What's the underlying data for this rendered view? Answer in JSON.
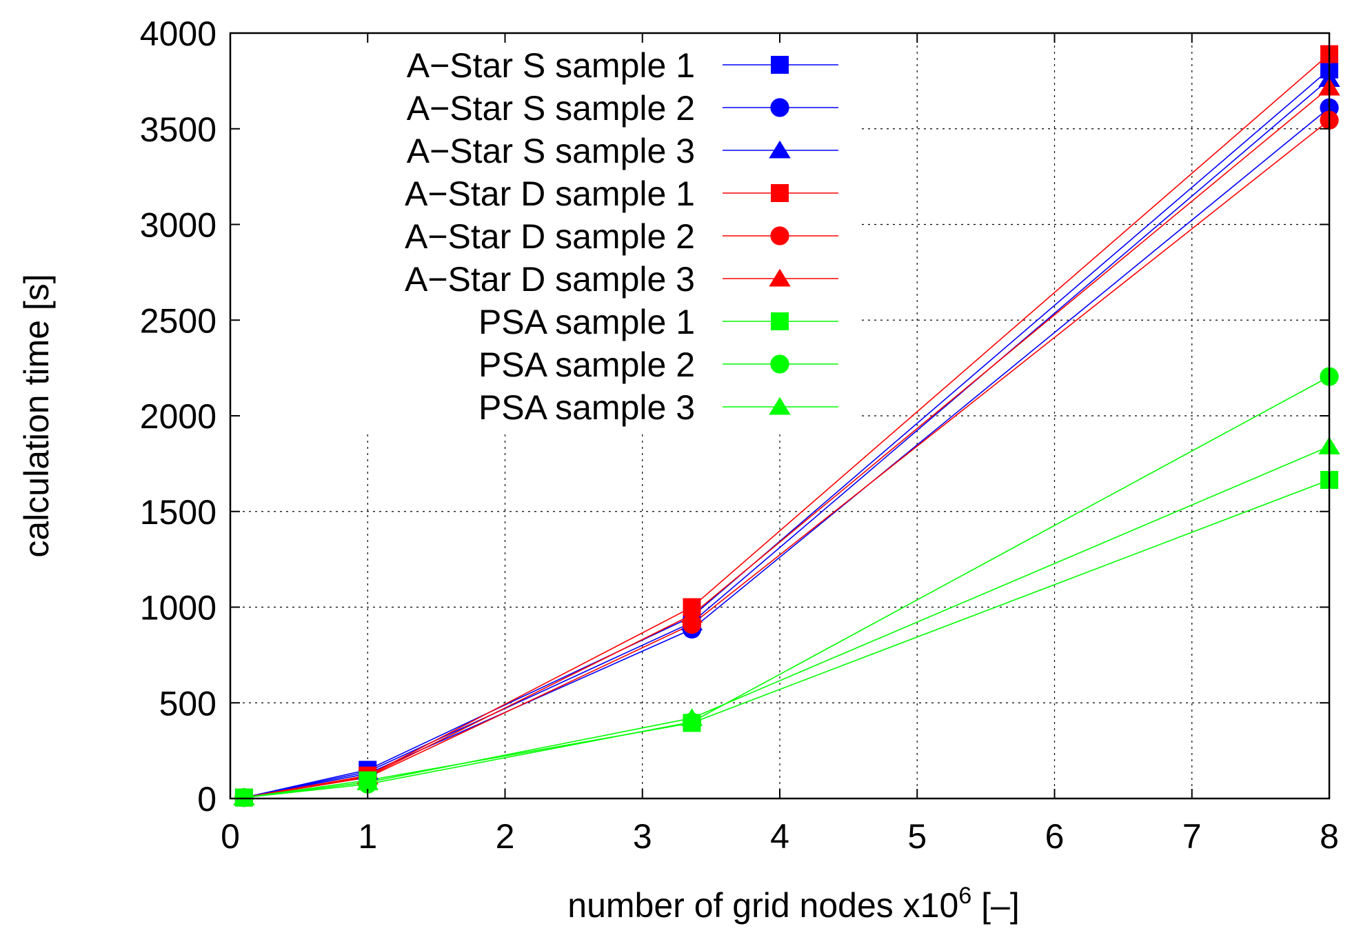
{
  "chart_data": {
    "type": "line",
    "title": "",
    "xlabel": "number of grid nodes x10",
    "xlabel_sup": "6",
    "xlabel_suffix": " [–]",
    "ylabel": "calculation time [s]",
    "xlim": [
      0,
      8
    ],
    "ylim": [
      0,
      4000
    ],
    "xticks": [
      0,
      1,
      2,
      3,
      4,
      5,
      6,
      7,
      8
    ],
    "yticks": [
      0,
      500,
      1000,
      1500,
      2000,
      2500,
      3000,
      3500,
      4000
    ],
    "grid": true,
    "legend_position": "top-left",
    "x": [
      0.1,
      1.0,
      3.36,
      8.0
    ],
    "series": [
      {
        "name": "A−Star S sample 1",
        "color": "#0000ff",
        "marker": "square",
        "values": [
          5,
          150,
          950,
          3810
        ]
      },
      {
        "name": "A−Star S sample 2",
        "color": "#0000ff",
        "marker": "circle",
        "values": [
          5,
          130,
          885,
          3610
        ]
      },
      {
        "name": "A−Star S sample 3",
        "color": "#0000ff",
        "marker": "triangle",
        "values": [
          5,
          140,
          920,
          3760
        ]
      },
      {
        "name": "A−Star D sample 1",
        "color": "#ff0000",
        "marker": "square",
        "values": [
          5,
          120,
          1000,
          3890
        ]
      },
      {
        "name": "A−Star D sample 2",
        "color": "#ff0000",
        "marker": "circle",
        "values": [
          5,
          110,
          910,
          3545
        ]
      },
      {
        "name": "A−Star D sample 3",
        "color": "#ff0000",
        "marker": "triangle",
        "values": [
          5,
          115,
          960,
          3715
        ]
      },
      {
        "name": "PSA sample 1",
        "color": "#00ff00",
        "marker": "square",
        "values": [
          5,
          95,
          395,
          1665
        ]
      },
      {
        "name": "PSA sample 2",
        "color": "#00ff00",
        "marker": "circle",
        "values": [
          5,
          75,
          400,
          2205
        ]
      },
      {
        "name": "PSA sample 3",
        "color": "#00ff00",
        "marker": "triangle",
        "values": [
          5,
          85,
          420,
          1840
        ]
      }
    ]
  }
}
